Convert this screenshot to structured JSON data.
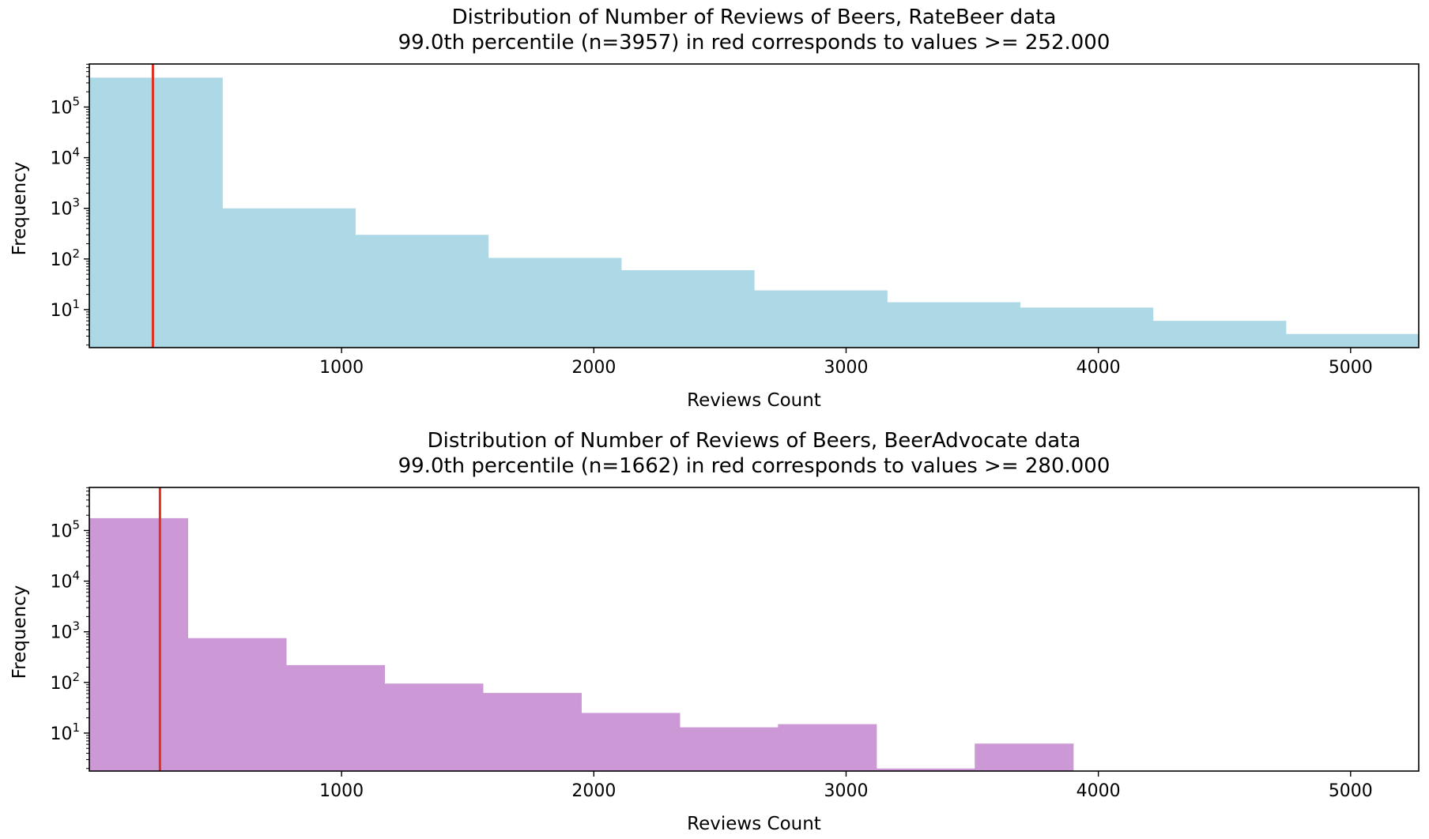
{
  "chart_data": [
    {
      "type": "bar",
      "title": "Distribution of Number of Reviews of Beers, RateBeer data",
      "subtitle": "99.0th percentile (n=3957) in red corresponds to values >= 252.000",
      "xlabel": "Reviews Count",
      "ylabel": "Frequency",
      "xlim": [
        0,
        5270
      ],
      "ylim_log10": [
        0.25,
        5.85
      ],
      "y_scale": "log",
      "x_ticks": [
        1000,
        2000,
        3000,
        4000,
        5000
      ],
      "x_tick_labels": [
        "1000",
        "2000",
        "3000",
        "4000",
        "5000"
      ],
      "y_ticks": [
        {
          "base": "10",
          "exp": "1",
          "log": 1
        },
        {
          "base": "10",
          "exp": "2",
          "log": 2
        },
        {
          "base": "10",
          "exp": "3",
          "log": 3
        },
        {
          "base": "10",
          "exp": "4",
          "log": 4
        },
        {
          "base": "10",
          "exp": "5",
          "log": 5
        }
      ],
      "bin_edges": [
        0,
        527,
        1054,
        1581,
        2108,
        2635,
        3162,
        3689,
        4216,
        4743,
        5270
      ],
      "values": [
        380000,
        1000,
        300,
        105,
        60,
        24,
        14,
        11,
        6,
        3.3
      ],
      "bar_color": "#add8e6",
      "percentile_value": 252,
      "percentile_line_color": "#e03020",
      "grid": false
    },
    {
      "type": "bar",
      "title": "Distribution of Number of Reviews of Beers, BeerAdvocate data",
      "subtitle": "99.0th percentile (n=1662) in red corresponds to values >= 280.000",
      "xlabel": "Reviews Count",
      "ylabel": "Frequency",
      "xlim": [
        0,
        5270
      ],
      "ylim_log10": [
        0.25,
        5.85
      ],
      "y_scale": "log",
      "x_ticks": [
        1000,
        2000,
        3000,
        4000,
        5000
      ],
      "x_tick_labels": [
        "1000",
        "2000",
        "3000",
        "4000",
        "5000"
      ],
      "y_ticks": [
        {
          "base": "10",
          "exp": "1",
          "log": 1
        },
        {
          "base": "10",
          "exp": "2",
          "log": 2
        },
        {
          "base": "10",
          "exp": "3",
          "log": 3
        },
        {
          "base": "10",
          "exp": "4",
          "log": 4
        },
        {
          "base": "10",
          "exp": "5",
          "log": 5
        }
      ],
      "bin_edges": [
        0,
        390,
        780,
        1170,
        1560,
        1950,
        2340,
        2730,
        3120,
        3510,
        3900
      ],
      "values": [
        175000,
        750,
        220,
        95,
        62,
        25,
        13,
        15,
        2,
        6.2
      ],
      "bar_color": "#cc99d6",
      "percentile_value": 280,
      "percentile_line_color": "#e03020",
      "grid": false
    }
  ]
}
